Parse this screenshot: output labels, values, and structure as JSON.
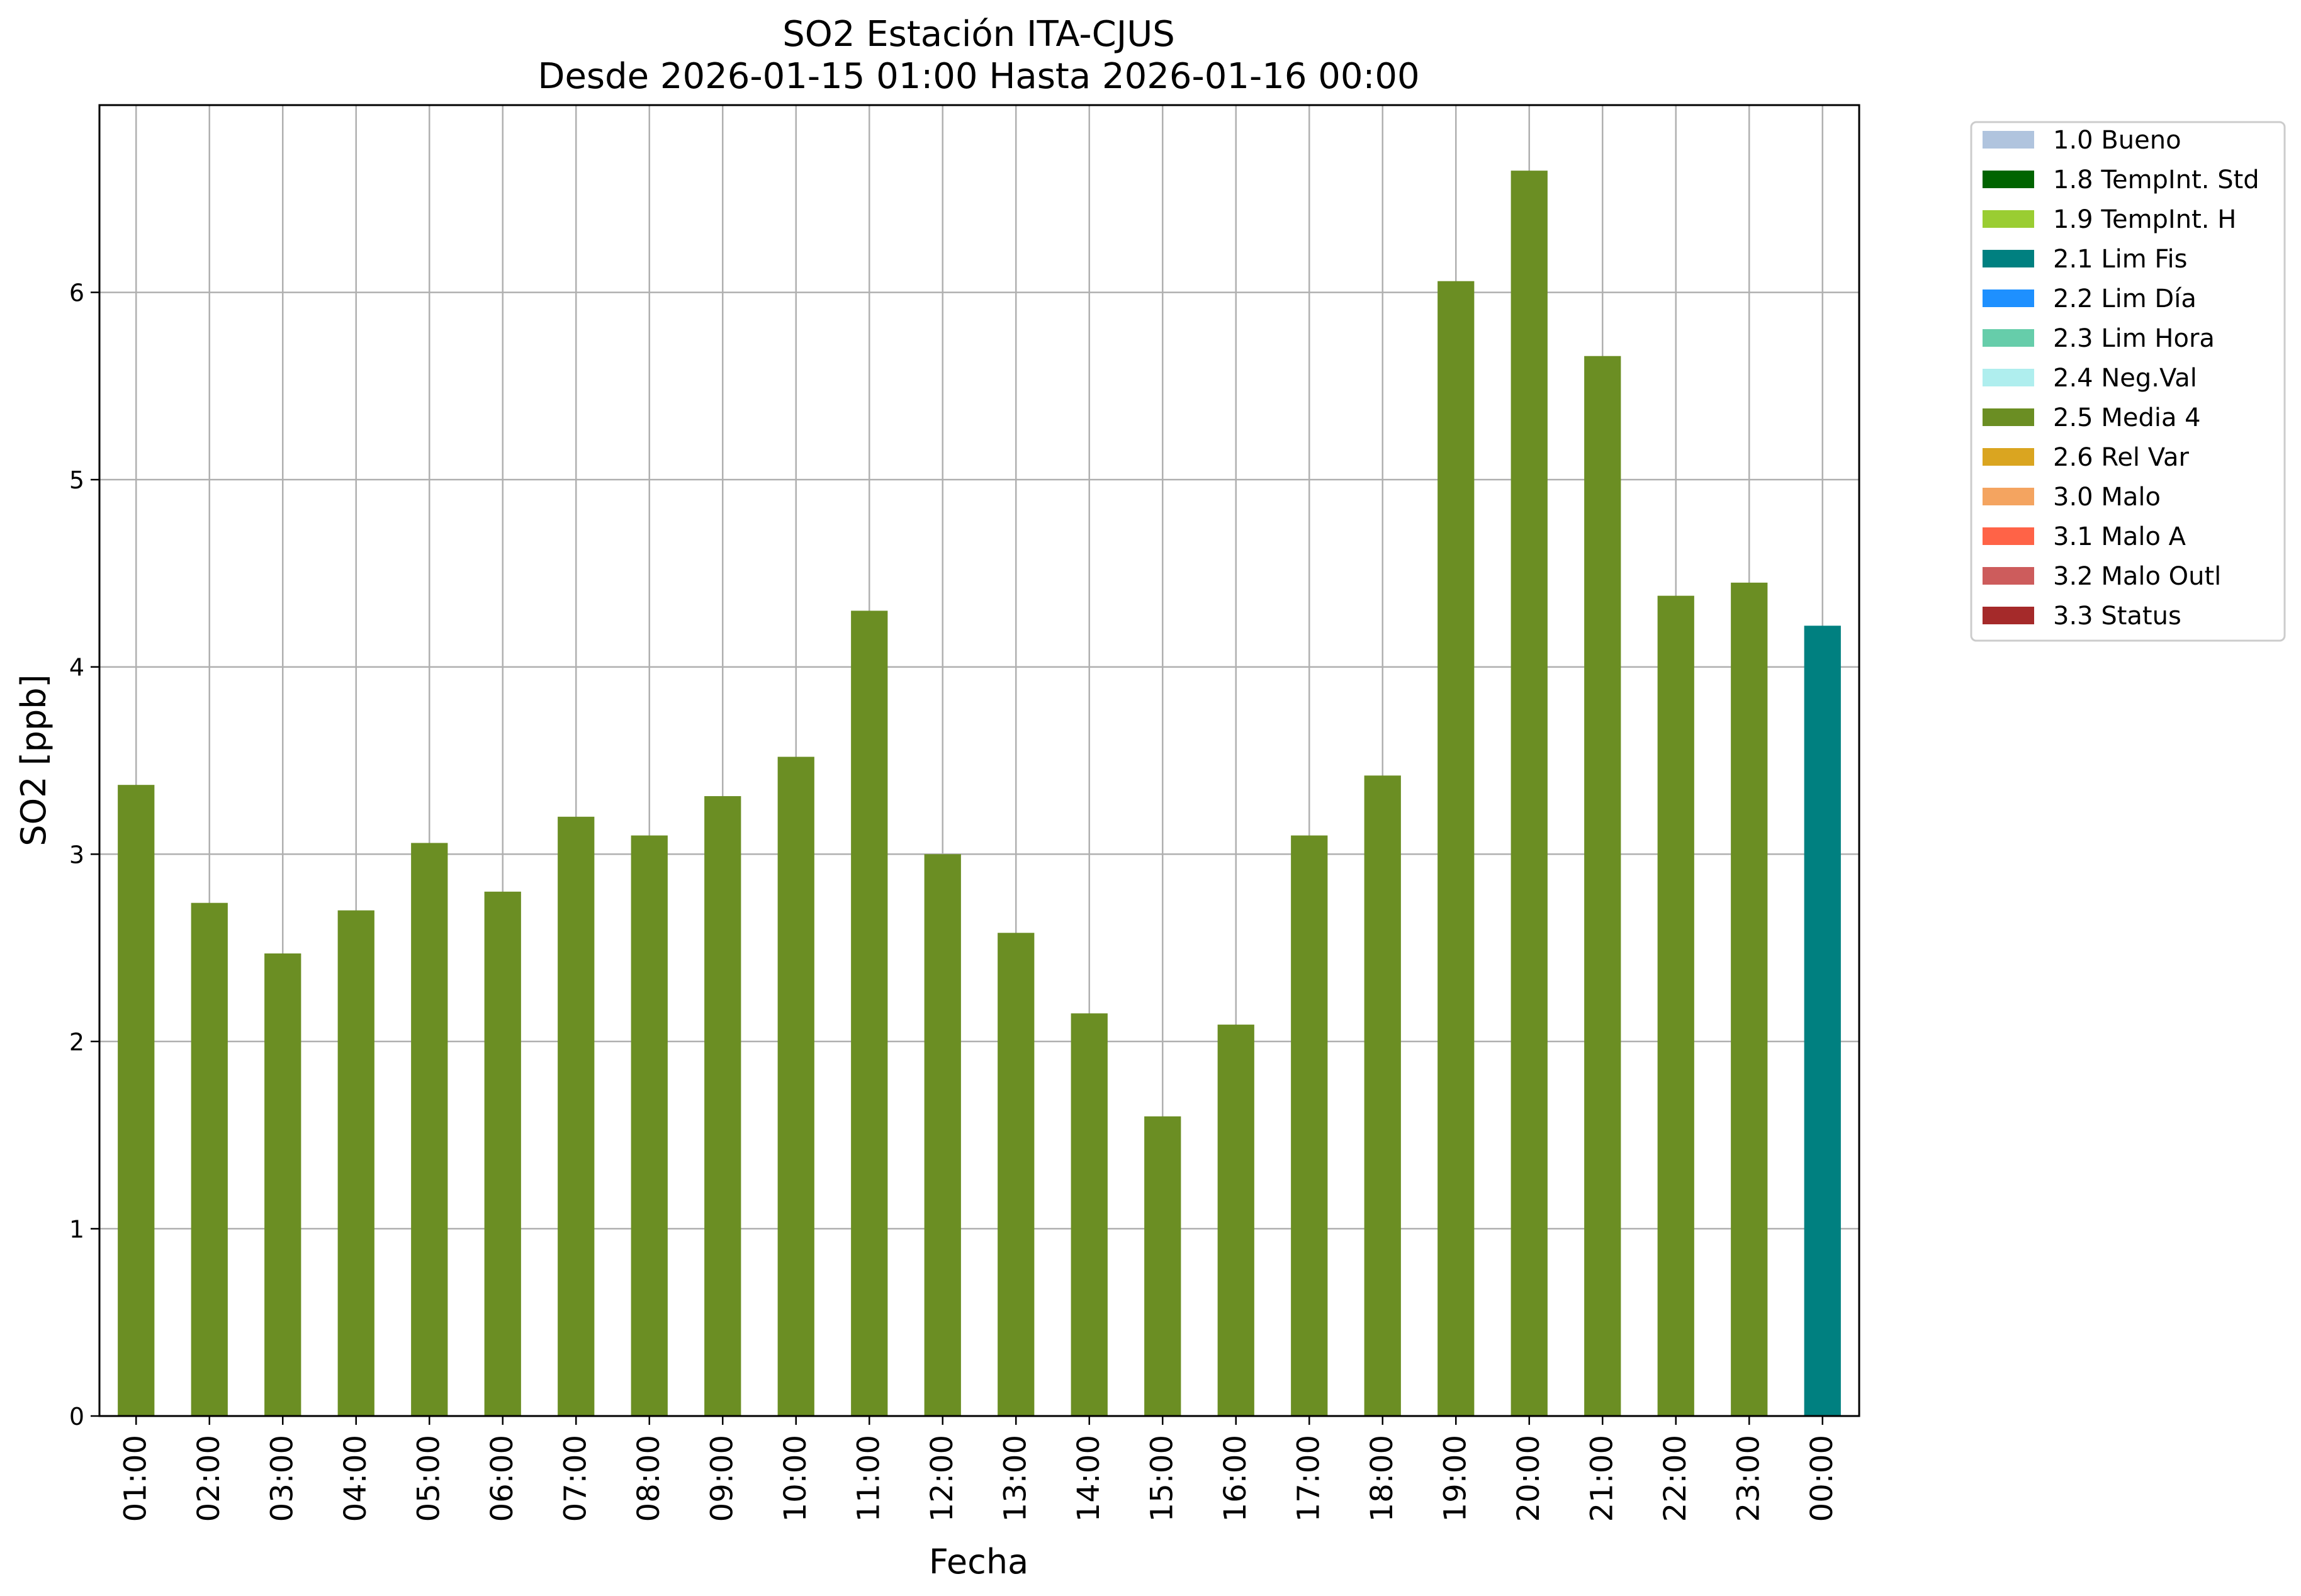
{
  "chart_data": {
    "type": "bar",
    "title_line1": "SO2 Estación ITA-CJUS",
    "title_line2": "Desde 2026-01-15 01:00 Hasta 2026-01-16 00:00",
    "xlabel": "Fecha",
    "ylabel": "SO2 [ppb]",
    "ylim": [
      0,
      7
    ],
    "yticks": [
      0,
      1,
      2,
      3,
      4,
      5,
      6
    ],
    "grid": true,
    "legend_placement": "outside-top-right",
    "categories": [
      "01:00",
      "02:00",
      "03:00",
      "04:00",
      "05:00",
      "06:00",
      "07:00",
      "08:00",
      "09:00",
      "10:00",
      "11:00",
      "12:00",
      "13:00",
      "14:00",
      "15:00",
      "16:00",
      "17:00",
      "18:00",
      "19:00",
      "20:00",
      "21:00",
      "22:00",
      "23:00",
      "00:00"
    ],
    "values": [
      3.37,
      2.74,
      2.47,
      2.7,
      3.06,
      2.8,
      3.2,
      3.1,
      3.31,
      3.52,
      4.3,
      3.0,
      2.58,
      2.15,
      1.6,
      2.09,
      3.1,
      3.42,
      6.06,
      6.65,
      5.66,
      4.38,
      4.45,
      4.22
    ],
    "bar_status": [
      "2.5 Media 4",
      "2.5 Media 4",
      "2.5 Media 4",
      "2.5 Media 4",
      "2.5 Media 4",
      "2.5 Media 4",
      "2.5 Media 4",
      "2.5 Media 4",
      "2.5 Media 4",
      "2.5 Media 4",
      "2.5 Media 4",
      "2.5 Media 4",
      "2.5 Media 4",
      "2.5 Media 4",
      "2.5 Media 4",
      "2.5 Media 4",
      "2.5 Media 4",
      "2.5 Media 4",
      "2.5 Media 4",
      "2.5 Media 4",
      "2.5 Media 4",
      "2.5 Media 4",
      "2.5 Media 4",
      "2.1 Lim Fis"
    ],
    "legend": [
      {
        "label": "1.0 Bueno",
        "color": "#b0c4de"
      },
      {
        "label": "1.8 TempInt. Std",
        "color": "#006400"
      },
      {
        "label": "1.9 TempInt. H",
        "color": "#9acd32"
      },
      {
        "label": "2.1 Lim Fis",
        "color": "#008080"
      },
      {
        "label": "2.2 Lim Día",
        "color": "#1e90ff"
      },
      {
        "label": "2.3 Lim Hora",
        "color": "#66cdaa"
      },
      {
        "label": "2.4 Neg.Val",
        "color": "#afeeee"
      },
      {
        "label": "2.5 Media 4",
        "color": "#6b8e23"
      },
      {
        "label": "2.6 Rel Var",
        "color": "#daa520"
      },
      {
        "label": "3.0 Malo",
        "color": "#f4a460"
      },
      {
        "label": "3.1 Malo A",
        "color": "#ff6347"
      },
      {
        "label": "3.2 Malo Outl",
        "color": "#cd5c5c"
      },
      {
        "label": "3.3 Status",
        "color": "#a52a2a"
      }
    ]
  }
}
